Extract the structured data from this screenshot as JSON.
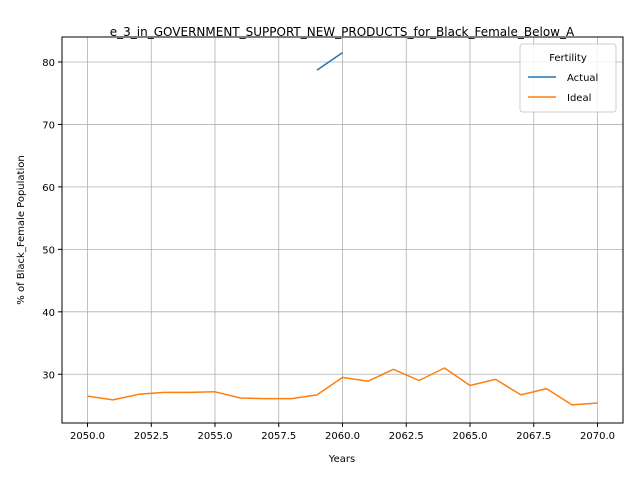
{
  "chart_data": {
    "type": "line",
    "title": "e_3_in_GOVERNMENT_SUPPORT_NEW_PRODUCTS_for_Black_Female_Below_A",
    "xlabel": "Years",
    "ylabel": "% of Black_Female Population",
    "xlim": [
      2049,
      2071
    ],
    "ylim": [
      22.2,
      84.0
    ],
    "xticks": [
      2050.0,
      2052.5,
      2055.0,
      2057.5,
      2060.0,
      2062.5,
      2065.0,
      2067.5,
      2070.0
    ],
    "xtick_labels": [
      "2050.0",
      "2052.5",
      "2055.0",
      "2057.5",
      "2060.0",
      "2062.5",
      "2065.0",
      "2067.5",
      "2070.0"
    ],
    "yticks": [
      30,
      40,
      50,
      60,
      70,
      80
    ],
    "ytick_labels": [
      "30",
      "40",
      "50",
      "60",
      "70",
      "80"
    ],
    "grid": true,
    "legend": {
      "title": "Fertility",
      "position": "top-right"
    },
    "series": [
      {
        "name": "Actual",
        "color": "#1f77b4",
        "x": [
          2059,
          2060
        ],
        "y": [
          78.7,
          81.5
        ]
      },
      {
        "name": "Ideal",
        "color": "#ff7f0e",
        "x": [
          2050,
          2051,
          2052,
          2053,
          2054,
          2055,
          2056,
          2057,
          2058,
          2059,
          2060,
          2061,
          2062,
          2063,
          2064,
          2065,
          2066,
          2067,
          2068,
          2069,
          2070
        ],
        "y": [
          26.5,
          25.9,
          26.8,
          27.1,
          27.1,
          27.2,
          26.2,
          26.1,
          26.1,
          26.7,
          29.5,
          28.9,
          30.8,
          29.0,
          31.0,
          28.2,
          29.2,
          26.7,
          27.7,
          25.1,
          25.4
        ]
      }
    ]
  }
}
